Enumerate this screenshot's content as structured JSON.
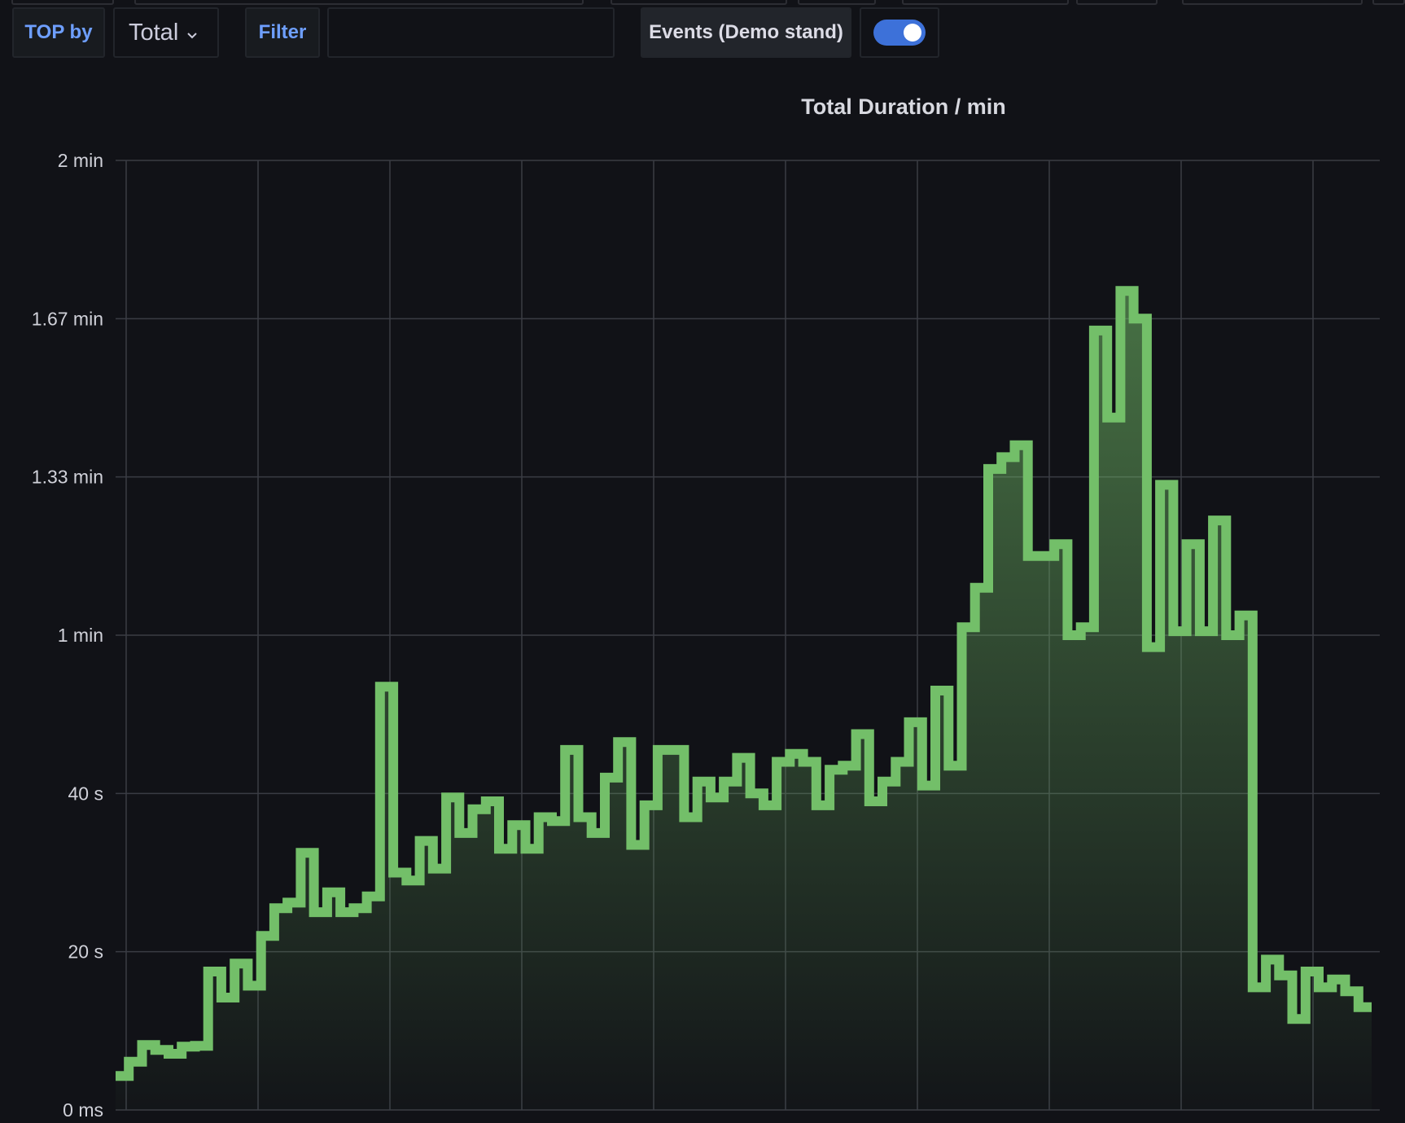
{
  "toolbar": {
    "top_by_label": "TOP by",
    "top_by_value": "Total",
    "filter_label": "Filter",
    "filter_value": "",
    "events_label": "Events (Demo stand)",
    "events_toggle_on": true
  },
  "colors": {
    "background": "#111217",
    "line": "#73bf69",
    "grid": "#3a3c44",
    "accent": "#6e9fff",
    "toggle": "#3d71d9"
  },
  "chart_data": {
    "type": "area",
    "title": "Total Duration / min",
    "xlabel": "",
    "ylabel": "",
    "ylim": [
      0,
      120
    ],
    "y_unit": "seconds",
    "y_ticks": [
      {
        "value": 0,
        "label": "0 ms"
      },
      {
        "value": 20,
        "label": "20 s"
      },
      {
        "value": 40,
        "label": "40 s"
      },
      {
        "value": 60,
        "label": "1 min"
      },
      {
        "value": 80,
        "label": "1.33 min"
      },
      {
        "value": 100,
        "label": "1.67 min"
      },
      {
        "value": 120,
        "label": "2 min"
      }
    ],
    "x_ticks_labeled": false,
    "grid": true,
    "interpolation": "step",
    "series": [
      {
        "values": [
          4.3,
          6.1,
          8.2,
          7.6,
          7.1,
          8.0,
          8.1,
          17.5,
          14.2,
          18.5,
          15.7,
          22.0,
          25.5,
          26.2,
          32.5,
          25.0,
          27.5,
          25.0,
          25.5,
          27.0,
          53.5,
          30.0,
          29.0,
          34.0,
          30.5,
          39.5,
          35.0,
          38.0,
          39.0,
          33.0,
          36.0,
          33.0,
          37.0,
          36.5,
          45.5,
          37.0,
          35.0,
          42.0,
          46.5,
          33.5,
          38.5,
          45.5,
          45.5,
          37.0,
          41.5,
          39.5,
          41.5,
          44.5,
          40.0,
          38.5,
          44.0,
          45.0,
          44.0,
          38.5,
          43.0,
          43.5,
          47.5,
          39.0,
          41.5,
          44.0,
          49.0,
          41.0,
          53.0,
          43.5,
          61.0,
          66.0,
          81.0,
          82.5,
          84.0,
          70.0,
          70.0,
          71.5,
          60.0,
          61.0,
          98.5,
          87.5,
          103.5,
          100.0,
          58.5,
          79.0,
          60.5,
          71.5,
          60.5,
          74.5,
          60.0,
          62.5,
          15.5,
          19.0,
          17.0,
          11.5,
          17.5,
          15.5,
          16.5,
          15.0,
          13.0
        ]
      }
    ]
  }
}
